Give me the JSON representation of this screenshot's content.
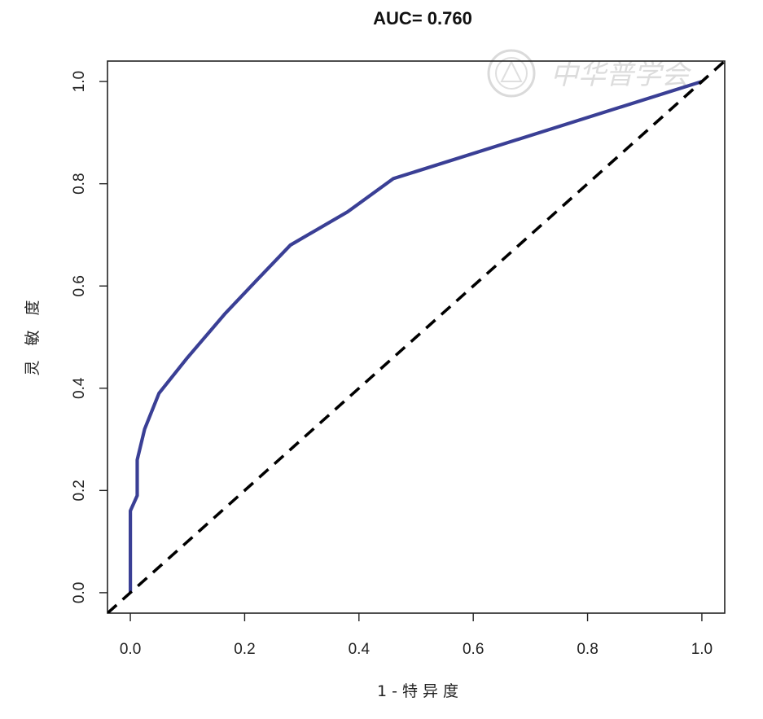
{
  "chart_data": {
    "type": "line",
    "title": "AUC= 0.760",
    "xlabel": "1 - 特 异 度",
    "ylabel": "灵 敏 度",
    "xlim": [
      -0.04,
      1.04
    ],
    "ylim": [
      -0.04,
      1.04
    ],
    "x_ticks": [
      "0.0",
      "0.2",
      "0.4",
      "0.6",
      "0.8",
      "1.0"
    ],
    "y_ticks": [
      "0.0",
      "0.2",
      "0.4",
      "0.6",
      "0.8",
      "1.0"
    ],
    "grid": false,
    "series": [
      {
        "style": "solid",
        "color": "#3a3f95",
        "points": [
          [
            0.0,
            0.0
          ],
          [
            0.0,
            0.16
          ],
          [
            0.012,
            0.19
          ],
          [
            0.012,
            0.26
          ],
          [
            0.025,
            0.32
          ],
          [
            0.05,
            0.39
          ],
          [
            0.1,
            0.46
          ],
          [
            0.165,
            0.545
          ],
          [
            0.22,
            0.61
          ],
          [
            0.28,
            0.68
          ],
          [
            0.38,
            0.745
          ],
          [
            0.46,
            0.81
          ],
          [
            1.0,
            1.0
          ]
        ]
      },
      {
        "style": "dashed",
        "color": "#000000",
        "points": [
          [
            -0.04,
            -0.04
          ],
          [
            1.04,
            1.04
          ]
        ]
      }
    ]
  },
  "watermark": {
    "text": "中华普学会",
    "color": "#d9d9d9"
  }
}
